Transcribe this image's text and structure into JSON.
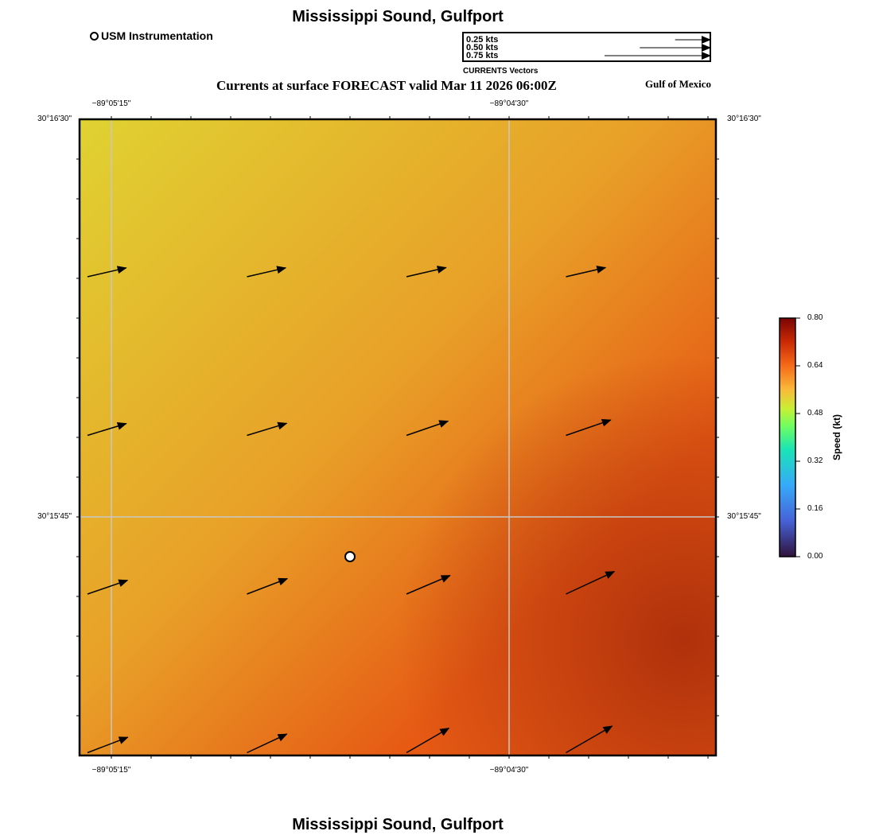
{
  "header": {
    "title": "Mississippi Sound, Gulfport",
    "subtitle": "Currents at surface FORECAST valid Mar 11 2026 06:00Z",
    "region": "Gulf of Mexico"
  },
  "footer": {
    "title": "Mississippi Sound, Gulfport"
  },
  "legend": {
    "station_label": "USM Instrumentation",
    "vector_scale": [
      {
        "label": "0.25 kts",
        "speed": 0.25
      },
      {
        "label": "0.50 kts",
        "speed": 0.5
      },
      {
        "label": "0.75 kts",
        "speed": 0.75
      }
    ],
    "vector_caption": "CURRENTS Vectors"
  },
  "map": {
    "lon_ticks": [
      {
        "label": "−89°05'15\"",
        "lon_sec_from_ref": 0
      },
      {
        "label": "−89°04'30\"",
        "lon_sec_from_ref": 45
      }
    ],
    "lat_ticks": [
      {
        "label": "30°16'30\"",
        "lat_sec_from_ref": 45
      },
      {
        "label": "30°15'45\"",
        "lat_sec_from_ref": 0
      }
    ],
    "station": {
      "name": "USM Instrumentation",
      "lon_sec_from_ref": 27,
      "lat_sec_from_ref": -4.5
    },
    "vectors": [
      {
        "row": 0,
        "col": 0,
        "speed": 0.47,
        "dir_deg": 77
      },
      {
        "row": 0,
        "col": 1,
        "speed": 0.47,
        "dir_deg": 77
      },
      {
        "row": 0,
        "col": 2,
        "speed": 0.48,
        "dir_deg": 77
      },
      {
        "row": 0,
        "col": 3,
        "speed": 0.48,
        "dir_deg": 77
      },
      {
        "row": 1,
        "col": 0,
        "speed": 0.48,
        "dir_deg": 73
      },
      {
        "row": 1,
        "col": 1,
        "speed": 0.49,
        "dir_deg": 73
      },
      {
        "row": 1,
        "col": 2,
        "speed": 0.52,
        "dir_deg": 71
      },
      {
        "row": 1,
        "col": 3,
        "speed": 0.56,
        "dir_deg": 71
      },
      {
        "row": 2,
        "col": 0,
        "speed": 0.5,
        "dir_deg": 71
      },
      {
        "row": 2,
        "col": 1,
        "speed": 0.51,
        "dir_deg": 69
      },
      {
        "row": 2,
        "col": 2,
        "speed": 0.56,
        "dir_deg": 67
      },
      {
        "row": 2,
        "col": 3,
        "speed": 0.63,
        "dir_deg": 65
      },
      {
        "row": 3,
        "col": 0,
        "speed": 0.51,
        "dir_deg": 69
      },
      {
        "row": 3,
        "col": 1,
        "speed": 0.52,
        "dir_deg": 65
      },
      {
        "row": 3,
        "col": 2,
        "speed": 0.58,
        "dir_deg": 60
      },
      {
        "row": 3,
        "col": 3,
        "speed": 0.63,
        "dir_deg": 60
      }
    ]
  },
  "colorbar": {
    "label": "Speed (kt)",
    "min": 0.0,
    "max": 0.8,
    "ticks": [
      "0.80",
      "0.64",
      "0.48",
      "0.32",
      "0.16",
      "0.00"
    ]
  },
  "colors": {
    "field_low": "#e0d232",
    "field_mid": "#e8a028",
    "field_high": "#e65a14",
    "field_max": "#aa2c0a",
    "grid": "#c8c8c8"
  }
}
